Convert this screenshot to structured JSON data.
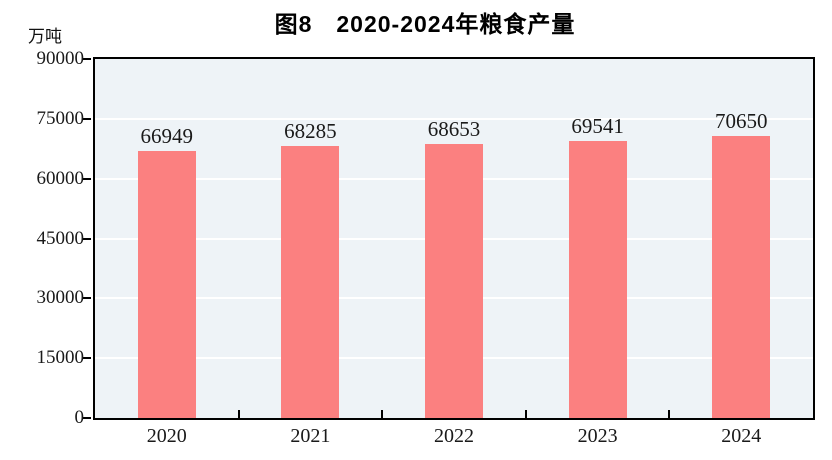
{
  "page": {
    "background": "#ffffff"
  },
  "chart_data": {
    "type": "bar",
    "title": "图8　2020-2024年粮食产量",
    "unit_label": "万吨",
    "categories": [
      "2020",
      "2021",
      "2022",
      "2023",
      "2024"
    ],
    "values": [
      66949,
      68285,
      68653,
      69541,
      70650
    ],
    "value_labels": [
      "66949",
      "68285",
      "68653",
      "69541",
      "70650"
    ],
    "xlabel": "",
    "ylabel": "万吨",
    "ylim": [
      0,
      90000
    ],
    "yticks": [
      0,
      15000,
      30000,
      45000,
      60000,
      75000,
      90000
    ],
    "grid": "horizontal",
    "legend_position": "none",
    "bar_color": "#FB8080",
    "plot_background": "#EEF3F7",
    "gridline_color": "#FFFFFF",
    "axis_color": "#000000",
    "text_color": "#1a1a1a"
  }
}
